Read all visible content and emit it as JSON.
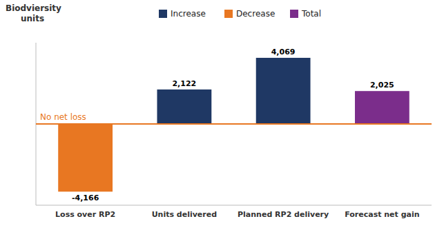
{
  "chart_data": {
    "type": "bar",
    "categories": [
      "Loss over RP2",
      "Units delivered",
      "Planned RP2 delivery",
      "Forecast net gain"
    ],
    "values": [
      -4166,
      2122,
      4069,
      2025
    ],
    "value_labels": [
      "-4,166",
      "2,122",
      "4,069",
      "2,025"
    ],
    "colors": [
      "#E87722",
      "#1F3864",
      "#1F3864",
      "#7B2D8B"
    ],
    "data_labels": true,
    "ylabel": [
      "Biodviersity",
      "units"
    ],
    "ylim": [
      -5000,
      5000
    ],
    "tick_labels": "x",
    "grid": false,
    "legend": "top",
    "legend_items": [
      {
        "label": "Increase",
        "color": "#1F3864"
      },
      {
        "label": "Decrease",
        "color": "#E87722"
      },
      {
        "label": "Total",
        "color": "#7B2D8B"
      }
    ],
    "reference_line": {
      "y": 0,
      "label": "No net loss",
      "color": "#E87722"
    }
  }
}
